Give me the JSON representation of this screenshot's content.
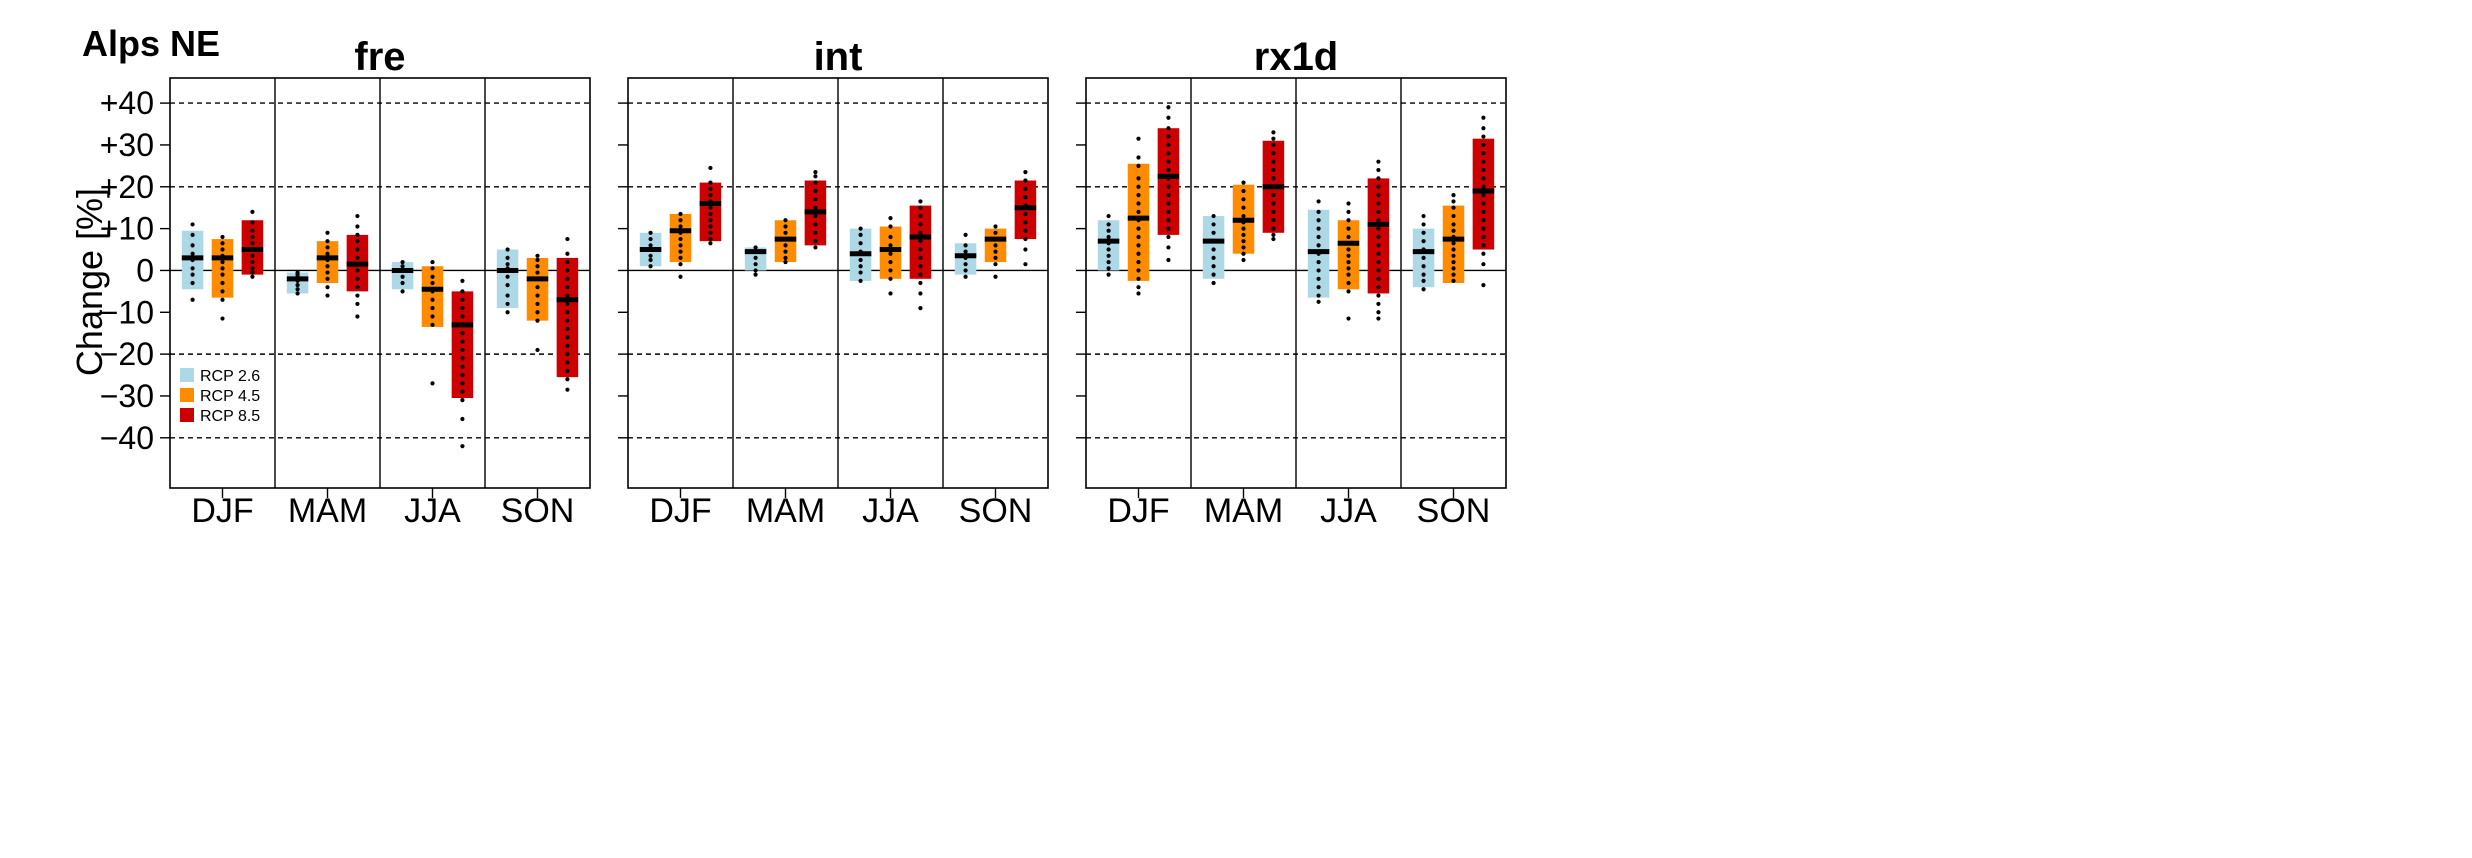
{
  "figure": {
    "region_title": "Alps NE",
    "ylabel": "Change [%]",
    "y_tick_labels": [
      "+40",
      "+30",
      "+20",
      "+10",
      "0",
      "−10",
      "−20",
      "−30",
      "−40"
    ]
  },
  "legend": {
    "placement": "bottom-left of first panel",
    "entries": [
      {
        "label": "RCP 2.6",
        "color": "#add8e6"
      },
      {
        "label": "RCP 4.5",
        "color": "#ff8c00"
      },
      {
        "label": "RCP 8.5",
        "color": "#cc0000"
      }
    ]
  },
  "chart_data": [
    {
      "type": "box",
      "title": "fre",
      "ylabel": "Change [%]",
      "ylim": [
        -52,
        46
      ],
      "categories": [
        "DJF",
        "MAM",
        "JJA",
        "SON"
      ],
      "dashed_gridlines": [
        40,
        20,
        -20,
        -40
      ],
      "series": [
        {
          "name": "RCP 2.6",
          "color": "#add8e6",
          "low": [
            -4.5,
            -5.5,
            -4.5,
            -9
          ],
          "median": [
            3,
            -2,
            0,
            0
          ],
          "high": [
            9.5,
            -0.5,
            2,
            5
          ],
          "points": [
            [
              11,
              8.5,
              6,
              4,
              2.5,
              0.5,
              -1,
              -3,
              -7
            ],
            [
              -0.5,
              -1,
              -1.5,
              -2.5,
              -3.5,
              -4.5,
              -5.5
            ],
            [
              2,
              1,
              0,
              -1.5,
              -3,
              -5
            ],
            [
              5,
              3,
              1.5,
              0.5,
              -1.5,
              -3.5,
              -6,
              -8,
              -10
            ]
          ]
        },
        {
          "name": "RCP 4.5",
          "color": "#ff8c00",
          "low": [
            -6.5,
            -3,
            -13.5,
            -12
          ],
          "median": [
            3,
            3,
            -4.5,
            -2
          ],
          "high": [
            7.5,
            7,
            1,
            3
          ],
          "points": [
            [
              8,
              6.5,
              5,
              3.5,
              2,
              0.5,
              -1,
              -3,
              -5,
              -7,
              -11.5
            ],
            [
              9,
              7,
              5.5,
              4,
              2.5,
              1,
              -0.5,
              -2,
              -4,
              -6
            ],
            [
              2,
              0.5,
              -1.5,
              -3,
              -5,
              -7,
              -9,
              -11,
              -13,
              -27
            ],
            [
              3.5,
              2.5,
              1,
              -0.5,
              -2,
              -4,
              -6,
              -8,
              -10,
              -12,
              -19
            ]
          ]
        },
        {
          "name": "RCP 8.5",
          "color": "#cc0000",
          "low": [
            -1,
            -5,
            -30.5,
            -25.5
          ],
          "median": [
            5,
            1.5,
            -13,
            -7
          ],
          "high": [
            12,
            8.5,
            -5,
            3
          ],
          "points": [
            [
              14,
              11.5,
              9.5,
              8,
              6.5,
              5,
              3.5,
              2,
              0.5,
              -0.5,
              -1.5
            ],
            [
              13,
              10.5,
              8.5,
              7,
              5,
              3,
              1.5,
              0,
              -2,
              -4,
              -6,
              -8,
              -11
            ],
            [
              -2.5,
              -5,
              -7,
              -9,
              -11,
              -13,
              -15,
              -17,
              -19,
              -21,
              -23,
              -25,
              -27,
              -29,
              -31,
              -35.5,
              -42
            ],
            [
              7.5,
              4,
              2,
              0,
              -2,
              -4,
              -6,
              -8,
              -10,
              -12,
              -14,
              -16,
              -18,
              -20,
              -22,
              -24,
              -26,
              -28.5
            ]
          ]
        }
      ]
    },
    {
      "type": "box",
      "title": "int",
      "ylabel": "",
      "ylim": [
        -52,
        46
      ],
      "categories": [
        "DJF",
        "MAM",
        "JJA",
        "SON"
      ],
      "dashed_gridlines": [
        40,
        20,
        -20,
        -40
      ],
      "series": [
        {
          "name": "RCP 2.6",
          "color": "#add8e6",
          "low": [
            1,
            0,
            -2.5,
            -1
          ],
          "median": [
            5,
            4.5,
            4,
            3.5
          ],
          "high": [
            9,
            5.5,
            10,
            6.5
          ],
          "points": [
            [
              9,
              7.5,
              6,
              5,
              3.5,
              2.5,
              1
            ],
            [
              5.5,
              4.5,
              3,
              1.5,
              0,
              -1
            ],
            [
              10,
              8.5,
              6.5,
              4.5,
              2.5,
              1,
              -0.5,
              -2.5
            ],
            [
              8.5,
              6,
              4.5,
              3,
              1.5,
              0,
              -1.5
            ]
          ]
        },
        {
          "name": "RCP 4.5",
          "color": "#ff8c00",
          "low": [
            2,
            2,
            -2,
            2
          ],
          "median": [
            9.5,
            7.5,
            5,
            7.5
          ],
          "high": [
            13.5,
            12,
            10.5,
            10
          ],
          "points": [
            [
              13.5,
              12,
              10.5,
              9,
              7.5,
              6,
              4.5,
              3,
              1.5,
              -1.5
            ],
            [
              12,
              10.5,
              9,
              7.5,
              6,
              4.5,
              3,
              2
            ],
            [
              12.5,
              10.5,
              8,
              6,
              4,
              2,
              0,
              -2,
              -5.5
            ],
            [
              10.5,
              9,
              7.5,
              6,
              4.5,
              3,
              1.5,
              -1.5
            ]
          ]
        },
        {
          "name": "RCP 8.5",
          "color": "#cc0000",
          "low": [
            7,
            6,
            -2,
            7.5
          ],
          "median": [
            16,
            14,
            8,
            15
          ],
          "high": [
            21,
            21.5,
            15.5,
            21.5
          ],
          "points": [
            [
              24.5,
              21,
              19.5,
              18,
              16.5,
              15,
              13.5,
              12,
              10.5,
              9,
              7.5,
              6.5
            ],
            [
              23.5,
              22.5,
              21,
              19,
              17,
              15,
              13,
              11,
              9,
              7,
              5.5
            ],
            [
              16.5,
              15,
              13,
              11,
              9,
              7,
              5,
              3,
              1,
              -1,
              -3,
              -5.5,
              -9
            ],
            [
              23.5,
              21.5,
              19.5,
              17.5,
              15.5,
              13.5,
              11.5,
              9.5,
              7.5,
              5,
              1.5
            ]
          ]
        }
      ]
    },
    {
      "type": "box",
      "title": "rx1d",
      "ylabel": "",
      "ylim": [
        -52,
        46
      ],
      "categories": [
        "DJF",
        "MAM",
        "JJA",
        "SON"
      ],
      "dashed_gridlines": [
        40,
        20,
        -20,
        -40
      ],
      "series": [
        {
          "name": "RCP 2.6",
          "color": "#add8e6",
          "low": [
            0,
            -2,
            -6.5,
            -4
          ],
          "median": [
            7,
            7,
            4.5,
            4.5
          ],
          "high": [
            12,
            13,
            14.5,
            10
          ],
          "points": [
            [
              13,
              11,
              9.5,
              8,
              6.5,
              5,
              3.5,
              2,
              0.5,
              -1
            ],
            [
              13,
              11,
              9,
              7,
              5,
              3,
              1,
              -1,
              -3
            ],
            [
              16.5,
              14,
              12,
              10,
              8,
              6,
              4,
              2,
              0,
              -2,
              -4,
              -6,
              -7.5
            ],
            [
              13,
              11,
              9,
              7,
              5,
              3,
              1,
              -1,
              -2.5,
              -4.5
            ]
          ]
        },
        {
          "name": "RCP 4.5",
          "color": "#ff8c00",
          "low": [
            -2.5,
            4,
            -4.5,
            -3
          ],
          "median": [
            12.5,
            12,
            6.5,
            7.5
          ],
          "high": [
            25.5,
            20.5,
            12,
            15.5
          ],
          "points": [
            [
              31.5,
              27,
              25,
              22,
              20,
              18,
              16,
              14,
              12,
              10,
              8,
              6,
              4,
              2,
              0,
              -2,
              -4,
              -5.5
            ],
            [
              21,
              19,
              17,
              15,
              13,
              11.5,
              10,
              8.5,
              7,
              5.5,
              4,
              2.5
            ],
            [
              16,
              14,
              12,
              10,
              8,
              6.5,
              5,
              3.5,
              2,
              0.5,
              -1,
              -3,
              -5,
              -11.5
            ],
            [
              18,
              16.5,
              15,
              13,
              11,
              9.5,
              8,
              6.5,
              5,
              3.5,
              2,
              0.5,
              -1,
              -2.5
            ]
          ]
        },
        {
          "name": "RCP 8.5",
          "color": "#cc0000",
          "low": [
            8.5,
            9,
            -5.5,
            5
          ],
          "median": [
            22.5,
            20,
            11,
            19
          ],
          "high": [
            34,
            31,
            22,
            31.5
          ],
          "points": [
            [
              39,
              36.5,
              34,
              32,
              30,
              28,
              26,
              24,
              22,
              20,
              18,
              16,
              14,
              12,
              10,
              8,
              5.5,
              2.5
            ],
            [
              33,
              31.5,
              30,
              28,
              26,
              24,
              22,
              20,
              18,
              16,
              14,
              12,
              10,
              8.5,
              7.5
            ],
            [
              26,
              24,
              22,
              20,
              18,
              16,
              14,
              12,
              10,
              8,
              6,
              4,
              2,
              0,
              -2,
              -4,
              -6,
              -8,
              -10,
              -11.5
            ],
            [
              36.5,
              34,
              32,
              30,
              28,
              26,
              24,
              22,
              20,
              18,
              16,
              14,
              12,
              10,
              8,
              6,
              4,
              1.5,
              -3.5
            ]
          ]
        }
      ]
    }
  ]
}
